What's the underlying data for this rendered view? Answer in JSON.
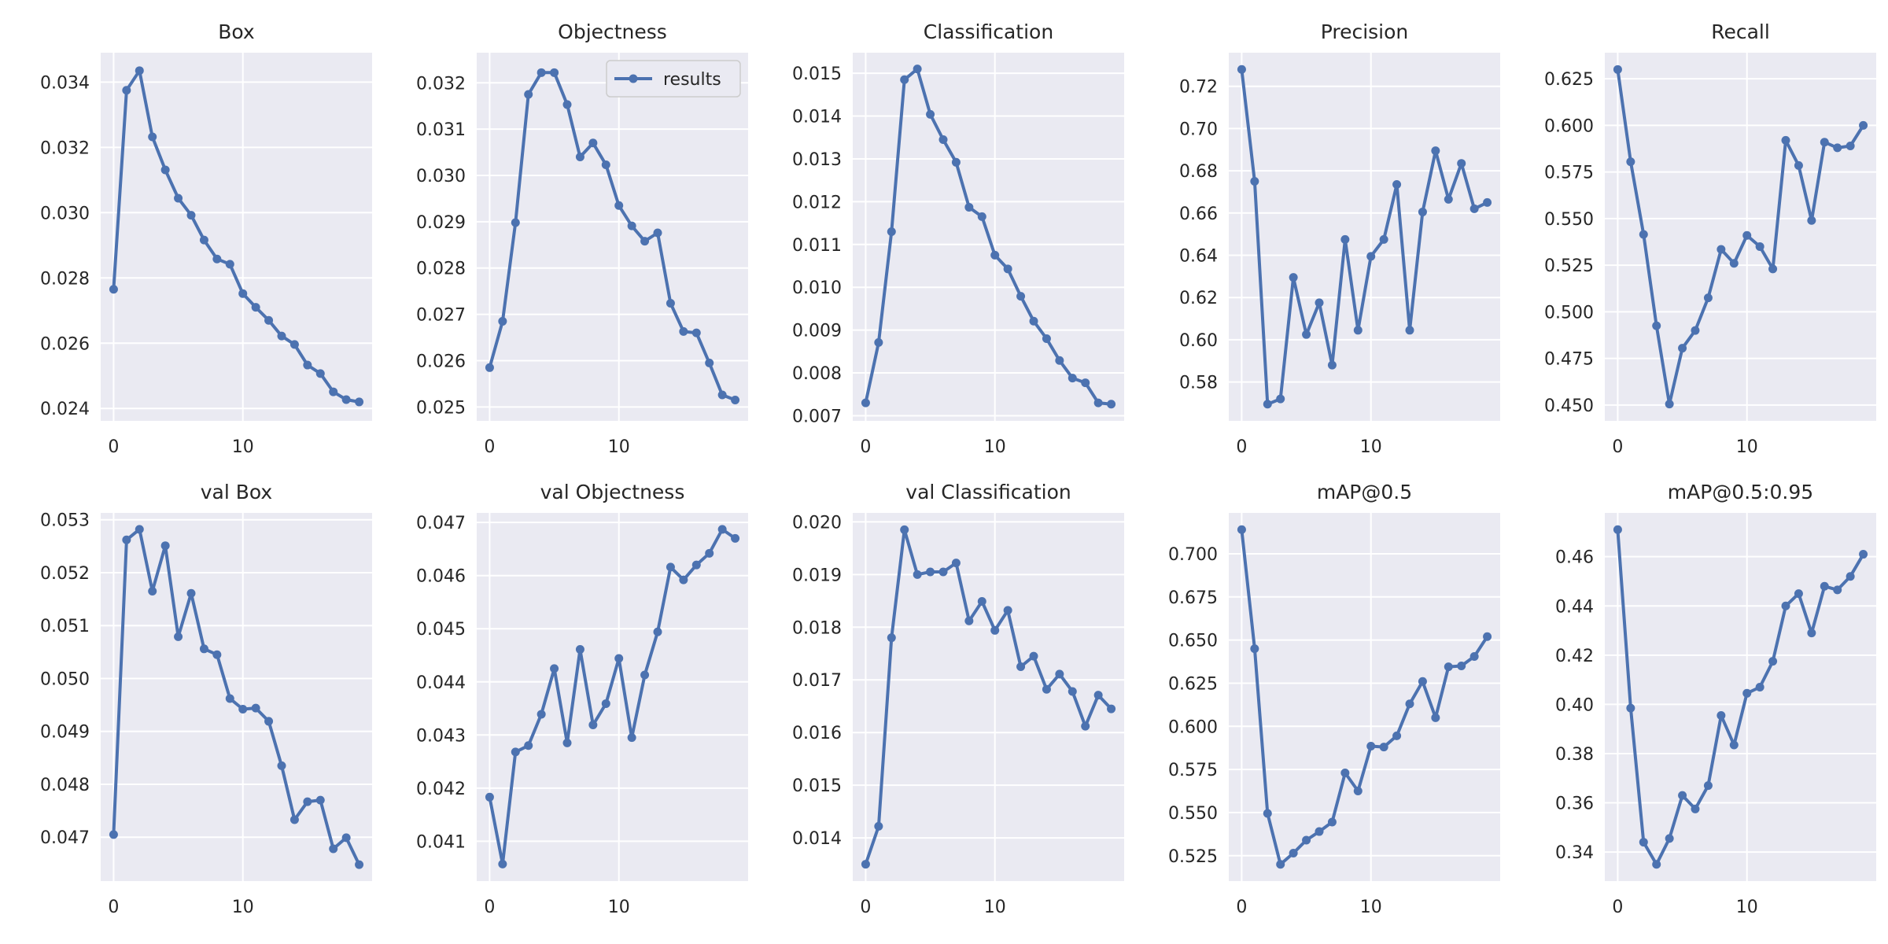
{
  "colors": {
    "line": "#4c72b0",
    "panel_bg": "#eaeaf2",
    "grid": "#ffffff",
    "text": "#262626"
  },
  "chart_data": [
    {
      "type": "line",
      "title": "Box",
      "x": [
        0,
        1,
        2,
        3,
        4,
        5,
        6,
        7,
        8,
        9,
        10,
        11,
        12,
        13,
        14,
        15,
        16,
        17,
        18,
        19
      ],
      "series": [
        {
          "name": "results",
          "values": [
            0.02765,
            0.03375,
            0.03435,
            0.03232,
            0.03131,
            0.03044,
            0.02992,
            0.02916,
            0.02858,
            0.02842,
            0.02752,
            0.0271,
            0.0267,
            0.02622,
            0.02596,
            0.02533,
            0.02507,
            0.02451,
            0.02427,
            0.0242
          ]
        }
      ],
      "xticks": [
        0,
        10
      ],
      "yticks": [
        0.024,
        0.026,
        0.028,
        0.03,
        0.032,
        0.034
      ],
      "xlim": [
        -1,
        20
      ],
      "ylim": [
        0.02362,
        0.0349
      ],
      "ydecimals": 3,
      "grid": true
    },
    {
      "type": "line",
      "title": "Objectness",
      "x": [
        0,
        1,
        2,
        3,
        4,
        5,
        6,
        7,
        8,
        9,
        10,
        11,
        12,
        13,
        14,
        15,
        16,
        17,
        18,
        19
      ],
      "series": [
        {
          "name": "results",
          "values": [
            0.02585,
            0.02685,
            0.02898,
            0.03175,
            0.03222,
            0.03222,
            0.03153,
            0.0304,
            0.0307,
            0.03023,
            0.02935,
            0.02891,
            0.02858,
            0.02876,
            0.02724,
            0.02663,
            0.0266,
            0.02595,
            0.02526,
            0.02515
          ]
        }
      ],
      "xticks": [
        0,
        10
      ],
      "yticks": [
        0.025,
        0.026,
        0.027,
        0.028,
        0.029,
        0.03,
        0.031,
        0.032
      ],
      "xlim": [
        -1,
        20
      ],
      "ylim": [
        0.0247,
        0.03265
      ],
      "ydecimals": 3,
      "legend": {
        "label": "results",
        "placement": "top-right"
      },
      "grid": true
    },
    {
      "type": "line",
      "title": "Classification",
      "x": [
        0,
        1,
        2,
        3,
        4,
        5,
        6,
        7,
        8,
        9,
        10,
        11,
        12,
        13,
        14,
        15,
        16,
        17,
        18,
        19
      ],
      "series": [
        {
          "name": "results",
          "values": [
            0.0073,
            0.00871,
            0.0113,
            0.01485,
            0.0151,
            0.01404,
            0.01345,
            0.01292,
            0.01187,
            0.01165,
            0.01075,
            0.01043,
            0.00979,
            0.00921,
            0.0088,
            0.00829,
            0.00788,
            0.00777,
            0.0073,
            0.00727
          ]
        }
      ],
      "xticks": [
        0,
        10
      ],
      "yticks": [
        0.007,
        0.008,
        0.009,
        0.01,
        0.011,
        0.012,
        0.013,
        0.014,
        0.015
      ],
      "xlim": [
        -1,
        20
      ],
      "ylim": [
        0.00688,
        0.01548
      ],
      "ydecimals": 3,
      "grid": true
    },
    {
      "type": "line",
      "title": "Precision",
      "x": [
        0,
        1,
        2,
        3,
        4,
        5,
        6,
        7,
        8,
        9,
        10,
        11,
        12,
        13,
        14,
        15,
        16,
        17,
        18,
        19
      ],
      "series": [
        {
          "name": "results",
          "values": [
            0.728,
            0.675,
            0.5695,
            0.572,
            0.6295,
            0.6025,
            0.6175,
            0.588,
            0.6475,
            0.6045,
            0.6395,
            0.6475,
            0.6735,
            0.6045,
            0.6605,
            0.6895,
            0.6665,
            0.6835,
            0.662,
            0.665
          ]
        }
      ],
      "xticks": [
        0,
        10
      ],
      "yticks": [
        0.58,
        0.6,
        0.62,
        0.64,
        0.66,
        0.68,
        0.7,
        0.72
      ],
      "xlim": [
        -1,
        20
      ],
      "ylim": [
        0.5616,
        0.7359
      ],
      "ydecimals": 2,
      "grid": true
    },
    {
      "type": "line",
      "title": "Recall",
      "x": [
        0,
        1,
        2,
        3,
        4,
        5,
        6,
        7,
        8,
        9,
        10,
        11,
        12,
        13,
        14,
        15,
        16,
        17,
        18,
        19
      ],
      "series": [
        {
          "name": "results",
          "values": [
            0.63,
            0.5805,
            0.5415,
            0.4925,
            0.4505,
            0.4805,
            0.49,
            0.5075,
            0.5335,
            0.526,
            0.541,
            0.535,
            0.523,
            0.592,
            0.5785,
            0.549,
            0.591,
            0.588,
            0.589,
            0.6
          ]
        }
      ],
      "xticks": [
        0,
        10
      ],
      "yticks": [
        0.45,
        0.475,
        0.5,
        0.525,
        0.55,
        0.575,
        0.6,
        0.625
      ],
      "xlim": [
        -1,
        20
      ],
      "ylim": [
        0.4415,
        0.639
      ],
      "ydecimals": 3,
      "grid": true
    },
    {
      "type": "line",
      "title": "val Box",
      "x": [
        0,
        1,
        2,
        3,
        4,
        5,
        6,
        7,
        8,
        9,
        10,
        11,
        12,
        13,
        14,
        15,
        16,
        17,
        18,
        19
      ],
      "series": [
        {
          "name": "results",
          "values": [
            0.04705,
            0.05262,
            0.05282,
            0.05165,
            0.05251,
            0.05079,
            0.05161,
            0.05056,
            0.05045,
            0.04962,
            0.04942,
            0.04944,
            0.04919,
            0.04835,
            0.04733,
            0.04767,
            0.0477,
            0.04678,
            0.04699,
            0.04648
          ]
        }
      ],
      "xticks": [
        0,
        10
      ],
      "yticks": [
        0.047,
        0.048,
        0.049,
        0.05,
        0.051,
        0.052,
        0.053
      ],
      "xlim": [
        -1,
        20
      ],
      "ylim": [
        0.04617,
        0.05313
      ],
      "ydecimals": 3,
      "grid": true
    },
    {
      "type": "line",
      "title": "val Objectness",
      "x": [
        0,
        1,
        2,
        3,
        4,
        5,
        6,
        7,
        8,
        9,
        10,
        11,
        12,
        13,
        14,
        15,
        16,
        17,
        18,
        19
      ],
      "series": [
        {
          "name": "results",
          "values": [
            0.04183,
            0.04057,
            0.04268,
            0.0428,
            0.04339,
            0.04425,
            0.04285,
            0.04461,
            0.04319,
            0.04359,
            0.04444,
            0.04295,
            0.04413,
            0.04494,
            0.04616,
            0.04592,
            0.0462,
            0.04642,
            0.04687,
            0.0467
          ]
        }
      ],
      "xticks": [
        0,
        10
      ],
      "yticks": [
        0.041,
        0.042,
        0.043,
        0.044,
        0.045,
        0.046,
        0.047
      ],
      "xlim": [
        -1,
        20
      ],
      "ylim": [
        0.04025,
        0.04718
      ],
      "ydecimals": 3,
      "grid": true
    },
    {
      "type": "line",
      "title": "val Classification",
      "x": [
        0,
        1,
        2,
        3,
        4,
        5,
        6,
        7,
        8,
        9,
        10,
        11,
        12,
        13,
        14,
        15,
        16,
        17,
        18,
        19
      ],
      "series": [
        {
          "name": "results",
          "values": [
            0.0135,
            0.01422,
            0.0178,
            0.01985,
            0.019,
            0.01905,
            0.01905,
            0.01922,
            0.01812,
            0.01849,
            0.01794,
            0.01832,
            0.01725,
            0.01745,
            0.01682,
            0.01711,
            0.01678,
            0.01612,
            0.01671,
            0.01645
          ]
        }
      ],
      "xticks": [
        0,
        10
      ],
      "yticks": [
        0.014,
        0.015,
        0.016,
        0.017,
        0.018,
        0.019,
        0.02
      ],
      "xlim": [
        -1,
        20
      ],
      "ylim": [
        0.01318,
        0.02017
      ],
      "ydecimals": 3,
      "grid": true
    },
    {
      "type": "line",
      "title": "mAP@0.5",
      "x": [
        0,
        1,
        2,
        3,
        4,
        5,
        6,
        7,
        8,
        9,
        10,
        11,
        12,
        13,
        14,
        15,
        16,
        17,
        18,
        19
      ],
      "series": [
        {
          "name": "results",
          "values": [
            0.714,
            0.645,
            0.5495,
            0.52,
            0.5265,
            0.534,
            0.539,
            0.5445,
            0.573,
            0.5625,
            0.5885,
            0.588,
            0.5945,
            0.613,
            0.626,
            0.605,
            0.6345,
            0.635,
            0.6405,
            0.652
          ]
        }
      ],
      "xticks": [
        0,
        10
      ],
      "yticks": [
        0.525,
        0.55,
        0.575,
        0.6,
        0.625,
        0.65,
        0.675,
        0.7
      ],
      "xlim": [
        -1,
        20
      ],
      "ylim": [
        0.5103,
        0.7237
      ],
      "ydecimals": 3,
      "grid": true
    },
    {
      "type": "line",
      "title": "mAP@0.5:0.95",
      "x": [
        0,
        1,
        2,
        3,
        4,
        5,
        6,
        7,
        8,
        9,
        10,
        11,
        12,
        13,
        14,
        15,
        16,
        17,
        18,
        19
      ],
      "series": [
        {
          "name": "results",
          "values": [
            0.471,
            0.3985,
            0.344,
            0.335,
            0.3455,
            0.363,
            0.3575,
            0.367,
            0.3955,
            0.3835,
            0.4045,
            0.407,
            0.4175,
            0.44,
            0.445,
            0.429,
            0.448,
            0.4465,
            0.452,
            0.461
          ]
        }
      ],
      "xticks": [
        0,
        10
      ],
      "yticks": [
        0.34,
        0.36,
        0.38,
        0.4,
        0.42,
        0.44,
        0.46
      ],
      "xlim": [
        -1,
        20
      ],
      "ylim": [
        0.3282,
        0.4778
      ],
      "ydecimals": 2,
      "grid": true
    }
  ]
}
